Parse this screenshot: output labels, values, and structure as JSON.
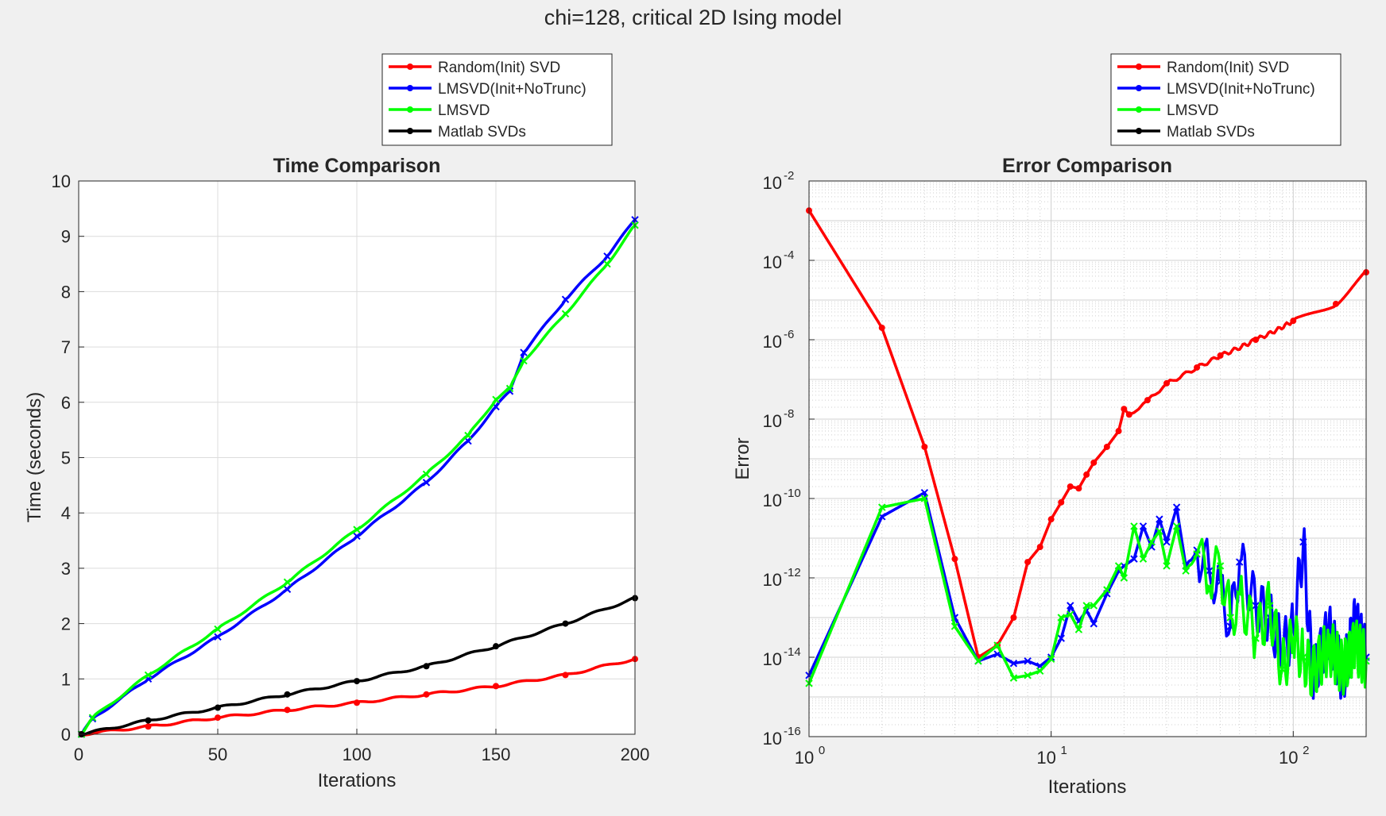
{
  "figure": {
    "title": "chi=128, critical 2D Ising model",
    "background": "#f0f0f0"
  },
  "colors": {
    "red": "#ff0000",
    "blue": "#0000ff",
    "green": "#00ff00",
    "black": "#000000",
    "grid": "#dcdcdc",
    "axis": "#262626"
  },
  "legend_entries": [
    "Random(Init) SVD",
    "LMSVD(Init+NoTrunc)",
    "LMSVD",
    "Matlab SVDs"
  ],
  "chart_data": [
    {
      "type": "line",
      "title": "Time Comparison",
      "xlabel": "Iterations",
      "ylabel": "Time (seconds)",
      "xlim": [
        0,
        200
      ],
      "ylim": [
        0,
        10
      ],
      "xticks": [
        "0",
        "50",
        "100",
        "150",
        "200"
      ],
      "yticks": [
        "0",
        "1",
        "2",
        "3",
        "4",
        "5",
        "6",
        "7",
        "8",
        "9",
        "10"
      ],
      "grid": true,
      "legend_position": "outside-top",
      "series": [
        {
          "name": "Random(Init) SVD",
          "color": "#ff0000",
          "marker": "dot",
          "points": [
            [
              1,
              0.0
            ],
            [
              25,
              0.14
            ],
            [
              50,
              0.3
            ],
            [
              75,
              0.44
            ],
            [
              100,
              0.57
            ],
            [
              125,
              0.72
            ],
            [
              150,
              0.87
            ],
            [
              175,
              1.07
            ],
            [
              200,
              1.36
            ]
          ]
        },
        {
          "name": "LMSVD(Init+NoTrunc)",
          "color": "#0000ff",
          "marker": "x",
          "points": [
            [
              1,
              0.0
            ],
            [
              5,
              0.28
            ],
            [
              25,
              1.0
            ],
            [
              50,
              1.76
            ],
            [
              75,
              2.62
            ],
            [
              100,
              3.58
            ],
            [
              125,
              4.55
            ],
            [
              140,
              5.3
            ],
            [
              150,
              5.92
            ],
            [
              155,
              6.2
            ],
            [
              160,
              6.9
            ],
            [
              175,
              7.86
            ],
            [
              190,
              8.64
            ],
            [
              200,
              9.3
            ]
          ]
        },
        {
          "name": "LMSVD",
          "color": "#00ff00",
          "marker": "x",
          "points": [
            [
              1,
              0.0
            ],
            [
              5,
              0.3
            ],
            [
              25,
              1.07
            ],
            [
              50,
              1.9
            ],
            [
              75,
              2.75
            ],
            [
              100,
              3.7
            ],
            [
              125,
              4.7
            ],
            [
              140,
              5.4
            ],
            [
              150,
              6.05
            ],
            [
              155,
              6.25
            ],
            [
              160,
              6.75
            ],
            [
              175,
              7.6
            ],
            [
              190,
              8.5
            ],
            [
              200,
              9.2
            ]
          ]
        },
        {
          "name": "Matlab SVDs",
          "color": "#000000",
          "marker": "dot",
          "points": [
            [
              1,
              0.0
            ],
            [
              25,
              0.25
            ],
            [
              50,
              0.48
            ],
            [
              75,
              0.72
            ],
            [
              100,
              0.96
            ],
            [
              125,
              1.23
            ],
            [
              150,
              1.59
            ],
            [
              175,
              2.0
            ],
            [
              200,
              2.46
            ]
          ]
        }
      ]
    },
    {
      "type": "line",
      "title": "Error Comparison",
      "xlabel": "Iterations",
      "ylabel": "Error",
      "xscale": "log",
      "yscale": "log",
      "xlim": [
        1,
        200
      ],
      "ylim": [
        1e-16,
        0.01
      ],
      "xticks": [
        {
          "base": "10",
          "exp": "0"
        },
        {
          "base": "10",
          "exp": "1"
        },
        {
          "base": "10",
          "exp": "2"
        }
      ],
      "yticks": [
        {
          "base": "10",
          "exp": "-16"
        },
        {
          "base": "10",
          "exp": "-14"
        },
        {
          "base": "10",
          "exp": "-12"
        },
        {
          "base": "10",
          "exp": "-10"
        },
        {
          "base": "10",
          "exp": "-8"
        },
        {
          "base": "10",
          "exp": "-6"
        },
        {
          "base": "10",
          "exp": "-4"
        },
        {
          "base": "10",
          "exp": "-2"
        }
      ],
      "grid": true,
      "legend_position": "outside-top",
      "series": [
        {
          "name": "Random(Init) SVD",
          "color": "#ff0000",
          "marker": "dot",
          "points": [
            [
              1,
              0.0018
            ],
            [
              2,
              2e-06
            ],
            [
              3,
              2e-09
            ],
            [
              4,
              3e-12
            ],
            [
              5,
              1e-14
            ],
            [
              6,
              2e-14
            ],
            [
              7,
              1e-13
            ],
            [
              8,
              2.5e-12
            ],
            [
              9,
              6e-12
            ],
            [
              10,
              3e-11
            ],
            [
              11,
              8e-11
            ],
            [
              12,
              2e-10
            ],
            [
              13,
              1.8e-10
            ],
            [
              14,
              4e-10
            ],
            [
              15,
              8e-10
            ],
            [
              17,
              2e-09
            ],
            [
              19,
              5e-09
            ],
            [
              20,
              1.8e-08
            ],
            [
              21,
              1.3e-08
            ],
            [
              25,
              3e-08
            ],
            [
              30,
              8e-08
            ],
            [
              40,
              2e-07
            ],
            [
              50,
              4e-07
            ],
            [
              70,
              1e-06
            ],
            [
              100,
              3e-06
            ],
            [
              150,
              8e-06
            ],
            [
              200,
              5e-05
            ]
          ]
        },
        {
          "name": "LMSVD(Init+NoTrunc)",
          "color": "#0000ff",
          "marker": "x",
          "points": [
            [
              1,
              3.5e-15
            ],
            [
              2,
              3.5e-11
            ],
            [
              3,
              1.4e-10
            ],
            [
              4,
              1e-13
            ],
            [
              5,
              8e-15
            ],
            [
              6,
              1.2e-14
            ],
            [
              7,
              7e-15
            ],
            [
              8,
              8e-15
            ],
            [
              9,
              6e-15
            ],
            [
              10,
              1e-14
            ],
            [
              11,
              3e-14
            ],
            [
              12,
              2e-13
            ],
            [
              13,
              8e-14
            ],
            [
              14,
              1.5e-13
            ],
            [
              15,
              7e-14
            ],
            [
              17,
              4e-13
            ],
            [
              19,
              1.5e-12
            ],
            [
              20,
              2e-12
            ],
            [
              22,
              3e-12
            ],
            [
              24,
              2e-11
            ],
            [
              26,
              6e-12
            ],
            [
              28,
              3e-11
            ],
            [
              30,
              8e-12
            ],
            [
              33,
              6e-11
            ],
            [
              36,
              2e-12
            ],
            [
              40,
              5e-12
            ],
            [
              45,
              1.5e-12
            ],
            [
              50,
              8e-13
            ],
            [
              55,
              6e-14
            ],
            [
              60,
              2.5e-12
            ],
            [
              70,
              2e-13
            ],
            [
              80,
              1e-13
            ],
            [
              90,
              1.5e-14
            ],
            [
              100,
              5e-14
            ],
            [
              110,
              8e-12
            ],
            [
              120,
              3e-15
            ],
            [
              140,
              5e-14
            ],
            [
              160,
              3e-15
            ],
            [
              180,
              8e-14
            ],
            [
              200,
              1e-14
            ]
          ]
        },
        {
          "name": "LMSVD",
          "color": "#00ff00",
          "marker": "x",
          "points": [
            [
              1,
              2.2e-15
            ],
            [
              2,
              6e-11
            ],
            [
              3,
              1e-10
            ],
            [
              4,
              6e-14
            ],
            [
              5,
              8e-15
            ],
            [
              6,
              2e-14
            ],
            [
              7,
              3e-15
            ],
            [
              8,
              3.5e-15
            ],
            [
              9,
              4.5e-15
            ],
            [
              10,
              9e-15
            ],
            [
              11,
              1e-13
            ],
            [
              12,
              1.2e-13
            ],
            [
              13,
              5e-14
            ],
            [
              14,
              2e-13
            ],
            [
              15,
              2e-13
            ],
            [
              17,
              5e-13
            ],
            [
              19,
              2e-12
            ],
            [
              20,
              1e-12
            ],
            [
              22,
              2e-11
            ],
            [
              24,
              3e-12
            ],
            [
              26,
              8e-12
            ],
            [
              28,
              1.5e-11
            ],
            [
              30,
              2e-12
            ],
            [
              33,
              2e-11
            ],
            [
              36,
              1.5e-12
            ],
            [
              40,
              4e-12
            ],
            [
              45,
              6e-13
            ],
            [
              50,
              2e-12
            ],
            [
              55,
              1e-13
            ],
            [
              60,
              4e-13
            ],
            [
              70,
              3e-14
            ],
            [
              80,
              2e-13
            ],
            [
              90,
              5e-15
            ],
            [
              100,
              3e-14
            ],
            [
              110,
              1e-14
            ],
            [
              120,
              4e-15
            ],
            [
              140,
              2e-14
            ],
            [
              160,
              5e-15
            ],
            [
              180,
              2e-14
            ],
            [
              200,
              8e-15
            ]
          ]
        },
        {
          "name": "Matlab SVDs",
          "color": "#000000",
          "marker": "dot",
          "points": []
        }
      ]
    }
  ]
}
